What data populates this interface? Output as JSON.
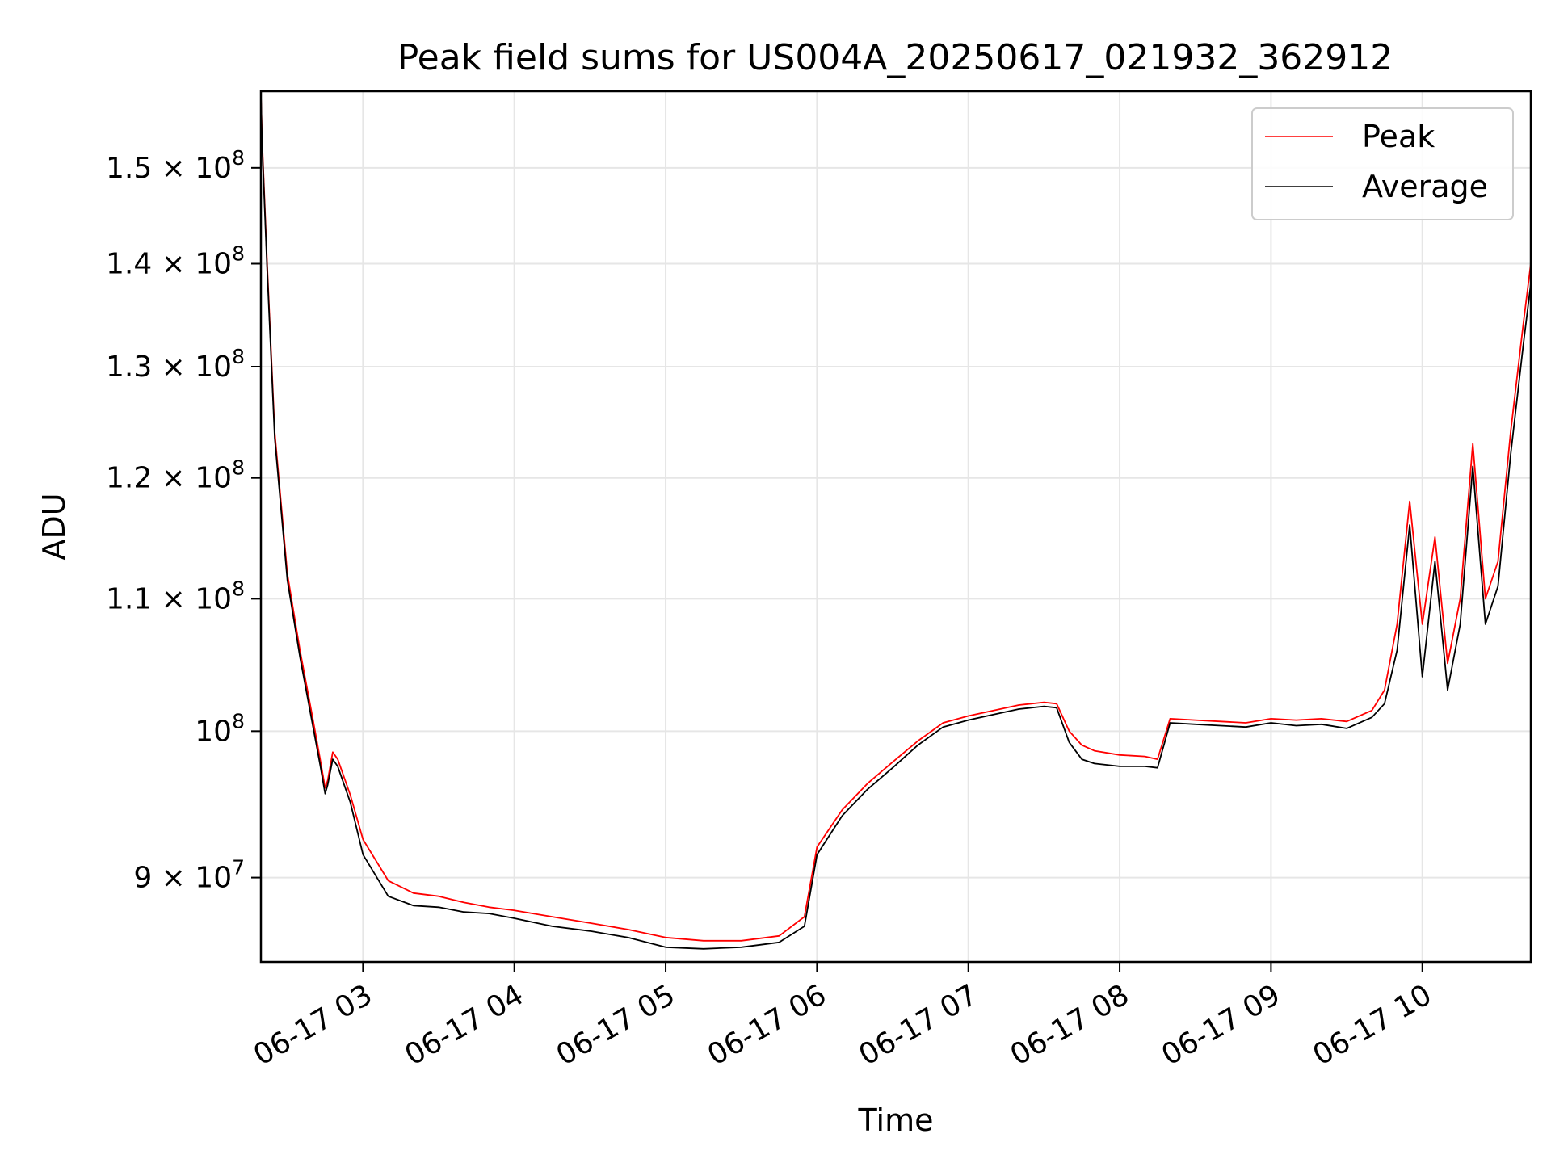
{
  "chart_data": {
    "type": "line",
    "title": "Peak field sums for US004A_20250617_021932_362912",
    "xlabel": "Time",
    "ylabel": "ADU",
    "x_scale": "time",
    "y_scale": "log",
    "xlim": [
      "06-17 02:19:32",
      "06-17 10:43"
    ],
    "ylim": [
      84700000,
      158500000
    ],
    "grid": true,
    "legend_position": "top-right",
    "x_ticks": [
      {
        "value": "06-17 03:00",
        "label": "06-17 03"
      },
      {
        "value": "06-17 04:00",
        "label": "06-17 04"
      },
      {
        "value": "06-17 05:00",
        "label": "06-17 05"
      },
      {
        "value": "06-17 06:00",
        "label": "06-17 06"
      },
      {
        "value": "06-17 07:00",
        "label": "06-17 07"
      },
      {
        "value": "06-17 08:00",
        "label": "06-17 08"
      },
      {
        "value": "06-17 09:00",
        "label": "06-17 09"
      },
      {
        "value": "06-17 10:00",
        "label": "06-17 10"
      }
    ],
    "y_ticks": [
      {
        "value": 90000000,
        "mantissa": "9 × 10",
        "exponent": "7"
      },
      {
        "value": 100000000,
        "mantissa": "10",
        "exponent": "8"
      },
      {
        "value": 110000000,
        "mantissa": "1.1 × 10",
        "exponent": "8"
      },
      {
        "value": 120000000,
        "mantissa": "1.2 × 10",
        "exponent": "8"
      },
      {
        "value": 130000000,
        "mantissa": "1.3 × 10",
        "exponent": "8"
      },
      {
        "value": 140000000,
        "mantissa": "1.4 × 10",
        "exponent": "8"
      },
      {
        "value": 150000000,
        "mantissa": "1.5 × 10",
        "exponent": "8"
      }
    ],
    "series": [
      {
        "name": "Peak",
        "color": "#ff0000",
        "x": [
          "06-17 02:19:32",
          "06-17 02:20",
          "06-17 02:22",
          "06-17 02:25",
          "06-17 02:30",
          "06-17 02:35",
          "06-17 02:40",
          "06-17 02:43",
          "06-17 02:45",
          "06-17 02:46",
          "06-17 02:48",
          "06-17 02:50",
          "06-17 02:55",
          "06-17 03:00",
          "06-17 03:10",
          "06-17 03:20",
          "06-17 03:30",
          "06-17 03:40",
          "06-17 03:50",
          "06-17 04:00",
          "06-17 04:15",
          "06-17 04:30",
          "06-17 04:45",
          "06-17 05:00",
          "06-17 05:15",
          "06-17 05:30",
          "06-17 05:45",
          "06-17 05:55",
          "06-17 06:00",
          "06-17 06:10",
          "06-17 06:20",
          "06-17 06:30",
          "06-17 06:40",
          "06-17 06:50",
          "06-17 07:00",
          "06-17 07:10",
          "06-17 07:20",
          "06-17 07:30",
          "06-17 07:35",
          "06-17 07:40",
          "06-17 07:45",
          "06-17 07:50",
          "06-17 08:00",
          "06-17 08:10",
          "06-17 08:15",
          "06-17 08:20",
          "06-17 08:30",
          "06-17 08:40",
          "06-17 08:50",
          "06-17 09:00",
          "06-17 09:10",
          "06-17 09:20",
          "06-17 09:30",
          "06-17 09:40",
          "06-17 09:45",
          "06-17 09:50",
          "06-17 09:55",
          "06-17 10:00",
          "06-17 10:05",
          "06-17 10:10",
          "06-17 10:15",
          "06-17 10:20",
          "06-17 10:25",
          "06-17 10:30",
          "06-17 10:35",
          "06-17 10:40",
          "06-17 10:43"
        ],
        "values": [
          158000000,
          153000000,
          140000000,
          124000000,
          112000000,
          106000000,
          101000000,
          98000000,
          96000000,
          96500000,
          98500000,
          98000000,
          95500000,
          92500000,
          89800000,
          89000000,
          88800000,
          88400000,
          88100000,
          87900000,
          87500000,
          87100000,
          86700000,
          86200000,
          86000000,
          86000000,
          86300000,
          87500000,
          92000000,
          94500000,
          96300000,
          97800000,
          99300000,
          100600000,
          101100000,
          101500000,
          101900000,
          102100000,
          102000000,
          100000000,
          99000000,
          98600000,
          98300000,
          98200000,
          98000000,
          100900000,
          100800000,
          100700000,
          100600000,
          100900000,
          100800000,
          100900000,
          100700000,
          101500000,
          103000000,
          108000000,
          118000000,
          108000000,
          115000000,
          105000000,
          110000000,
          123000000,
          110000000,
          113000000,
          124000000,
          134000000,
          140000000
        ]
      },
      {
        "name": "Average",
        "color": "#000000",
        "x": [
          "06-17 02:19:32",
          "06-17 02:20",
          "06-17 02:22",
          "06-17 02:25",
          "06-17 02:30",
          "06-17 02:35",
          "06-17 02:40",
          "06-17 02:43",
          "06-17 02:45",
          "06-17 02:46",
          "06-17 02:48",
          "06-17 02:50",
          "06-17 02:55",
          "06-17 03:00",
          "06-17 03:10",
          "06-17 03:20",
          "06-17 03:30",
          "06-17 03:40",
          "06-17 03:50",
          "06-17 04:00",
          "06-17 04:15",
          "06-17 04:30",
          "06-17 04:45",
          "06-17 05:00",
          "06-17 05:15",
          "06-17 05:30",
          "06-17 05:45",
          "06-17 05:55",
          "06-17 06:00",
          "06-17 06:10",
          "06-17 06:20",
          "06-17 06:30",
          "06-17 06:40",
          "06-17 06:50",
          "06-17 07:00",
          "06-17 07:10",
          "06-17 07:20",
          "06-17 07:30",
          "06-17 07:35",
          "06-17 07:40",
          "06-17 07:45",
          "06-17 07:50",
          "06-17 08:00",
          "06-17 08:10",
          "06-17 08:15",
          "06-17 08:20",
          "06-17 08:30",
          "06-17 08:40",
          "06-17 08:50",
          "06-17 09:00",
          "06-17 09:10",
          "06-17 09:20",
          "06-17 09:30",
          "06-17 09:40",
          "06-17 09:45",
          "06-17 09:50",
          "06-17 09:55",
          "06-17 10:00",
          "06-17 10:05",
          "06-17 10:10",
          "06-17 10:15",
          "06-17 10:20",
          "06-17 10:25",
          "06-17 10:30",
          "06-17 10:35",
          "06-17 10:40",
          "06-17 10:43"
        ],
        "values": [
          158000000,
          152500000,
          139500000,
          123500000,
          111500000,
          105500000,
          100500000,
          97600000,
          95600000,
          96200000,
          98000000,
          97500000,
          95000000,
          91500000,
          88800000,
          88200000,
          88100000,
          87800000,
          87700000,
          87400000,
          86900000,
          86600000,
          86200000,
          85600000,
          85500000,
          85600000,
          85900000,
          86900000,
          91500000,
          94100000,
          95900000,
          97400000,
          99000000,
          100300000,
          100800000,
          101200000,
          101600000,
          101800000,
          101700000,
          99200000,
          98000000,
          97700000,
          97500000,
          97500000,
          97400000,
          100600000,
          100500000,
          100400000,
          100300000,
          100600000,
          100400000,
          100500000,
          100200000,
          101000000,
          102000000,
          106000000,
          116000000,
          104000000,
          113000000,
          103000000,
          108000000,
          121000000,
          108000000,
          111000000,
          122000000,
          132000000,
          138000000
        ]
      }
    ]
  }
}
